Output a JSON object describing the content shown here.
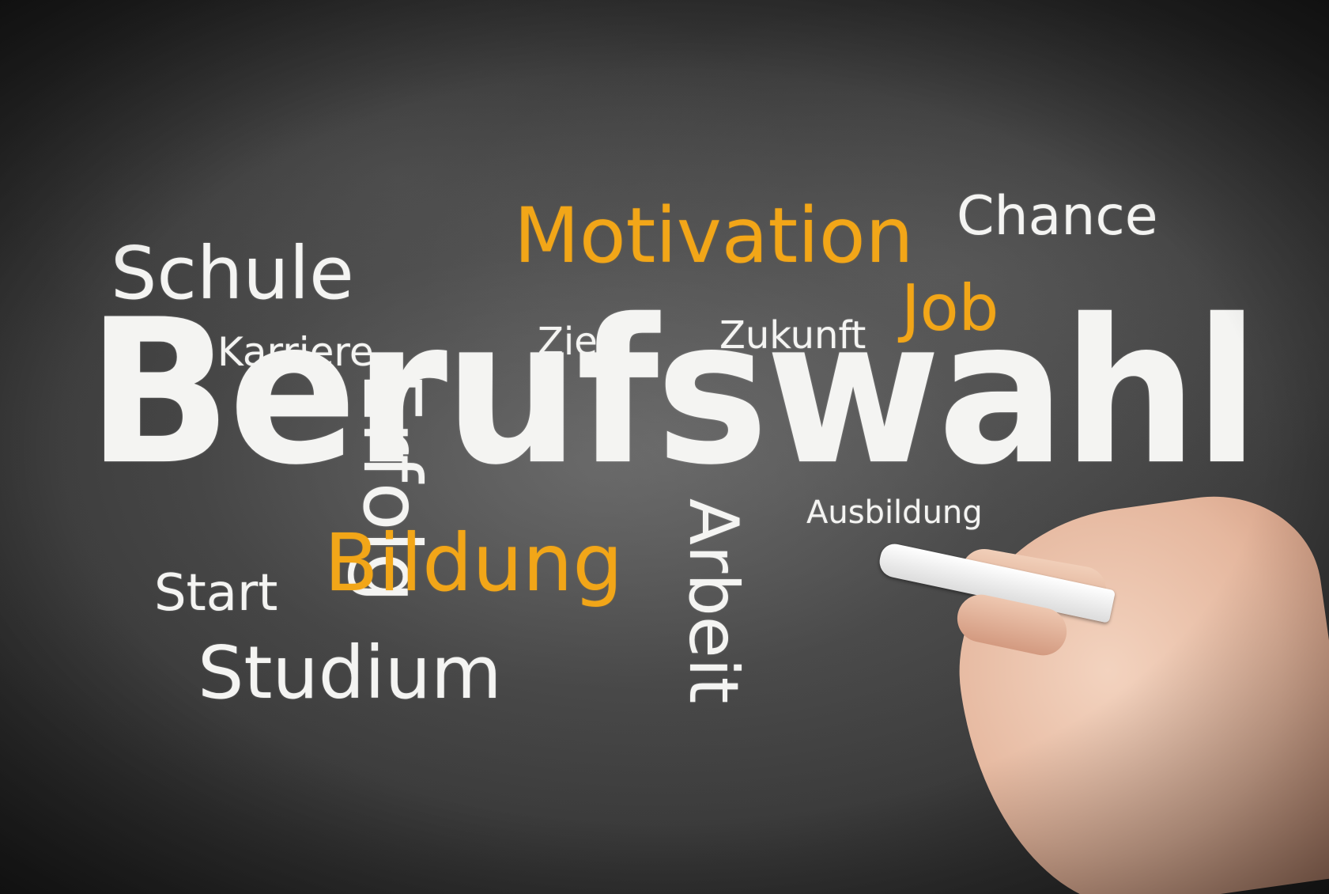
{
  "words": {
    "title": "Berufswahl",
    "schule": "Schule",
    "karriere": "Karriere",
    "erfolg": "Erfolg",
    "motivation": "Motivation",
    "chance": "Chance",
    "ziel": "Ziel",
    "zukunft": "Zukunft",
    "job": "Job",
    "ausbildung": "Ausbildung",
    "arbeit": "Arbeit",
    "bildung": "Bildung",
    "start": "Start",
    "studium": "Studium"
  },
  "colors": {
    "chalk_white": "#f4f4f2",
    "chalk_yellow": "#f2a618",
    "board": "#3b3b3b"
  }
}
